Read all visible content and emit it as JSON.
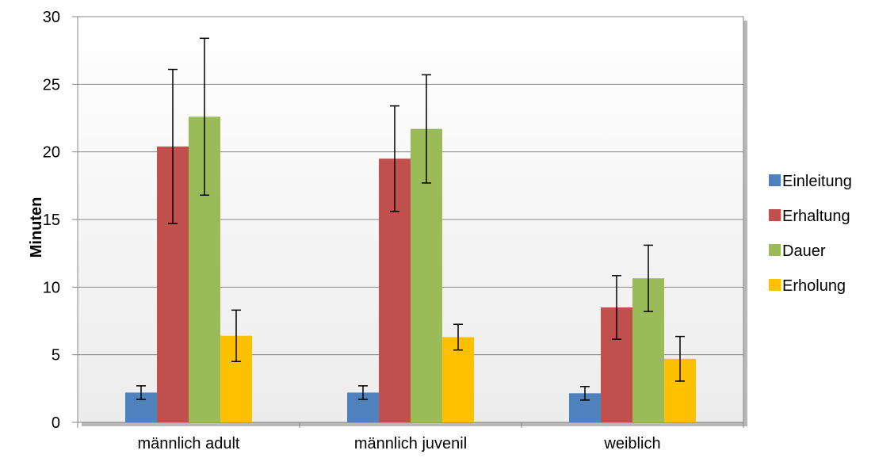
{
  "chart_data": {
    "type": "bar",
    "title": "",
    "xlabel": "",
    "ylabel": "Minuten",
    "ylim": [
      0,
      30
    ],
    "yticks": [
      0,
      5,
      10,
      15,
      20,
      25,
      30
    ],
    "grid": true,
    "legend_position": "right",
    "categories": [
      "männlich adult",
      "männlich juvenil",
      "weiblich"
    ],
    "series": [
      {
        "name": "Einleitung",
        "color": "#4F81BD",
        "values": [
          2.2,
          2.2,
          2.15
        ],
        "error": [
          0.5,
          0.5,
          0.5
        ]
      },
      {
        "name": "Erhaltung",
        "color": "#C0504D",
        "values": [
          20.4,
          19.5,
          8.5
        ],
        "error": [
          5.7,
          3.9,
          2.35
        ]
      },
      {
        "name": "Dauer",
        "color": "#9BBB59",
        "values": [
          22.6,
          21.7,
          10.65
        ],
        "error": [
          5.8,
          4.0,
          2.45
        ]
      },
      {
        "name": "Erholung",
        "color": "#FFC000",
        "values": [
          6.4,
          6.3,
          4.7
        ],
        "error": [
          1.9,
          0.95,
          1.65
        ]
      }
    ]
  }
}
